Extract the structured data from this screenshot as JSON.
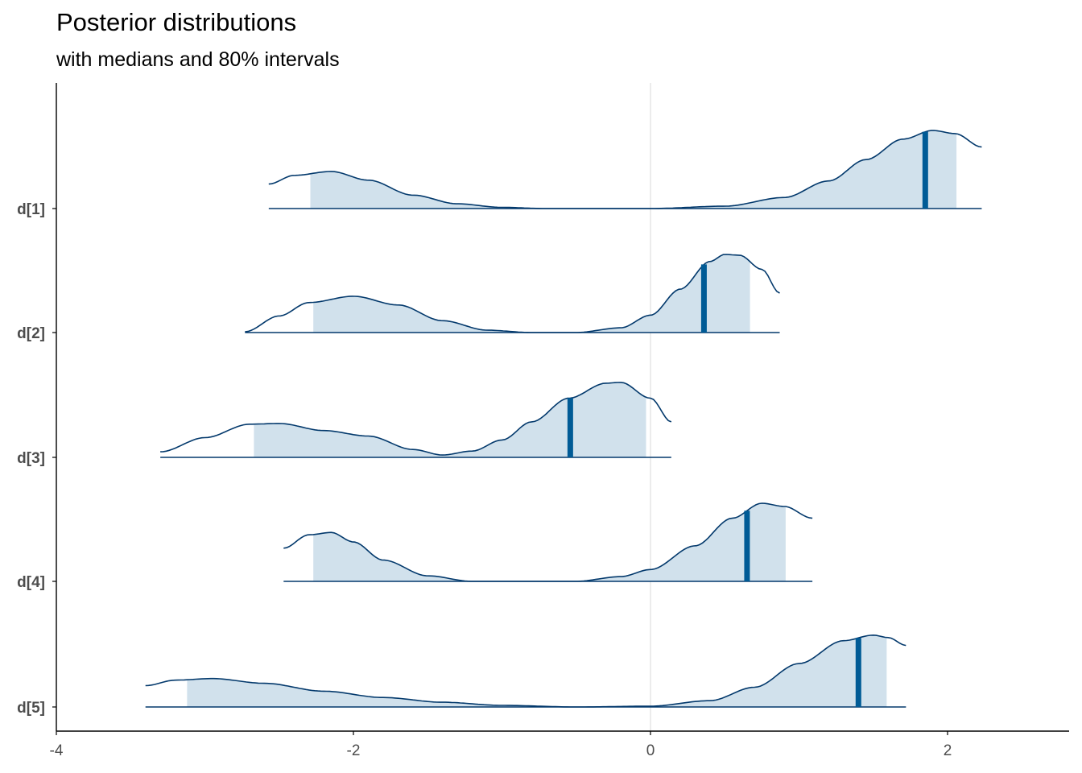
{
  "chart_data": {
    "type": "area",
    "title": "Posterior distributions",
    "subtitle": "with medians and 80% intervals",
    "xlim": [
      -4,
      2.8
    ],
    "x_ticks": [
      -4,
      -2,
      0,
      2
    ],
    "x_tick_labels": [
      "-4",
      "-2",
      "0",
      "2"
    ],
    "vline_at": 0,
    "grid": false,
    "colors": {
      "fill": "#d1e1ec",
      "line": "#03396c",
      "median": "#005b96",
      "vline": "#e0e0e0",
      "axis": "#000000"
    },
    "series": [
      {
        "name": "d[1]",
        "range": [
          -2.57,
          2.23
        ],
        "interval": [
          -2.29,
          2.06
        ],
        "median": 1.85,
        "density": [
          [
            -2.57,
            0.31
          ],
          [
            -2.4,
            0.42
          ],
          [
            -2.15,
            0.47
          ],
          [
            -1.9,
            0.36
          ],
          [
            -1.6,
            0.17
          ],
          [
            -1.3,
            0.06
          ],
          [
            -1.0,
            0.015
          ],
          [
            -0.7,
            0.0
          ],
          [
            0,
            0.0
          ],
          [
            0.5,
            0.03
          ],
          [
            0.9,
            0.14
          ],
          [
            1.2,
            0.35
          ],
          [
            1.45,
            0.62
          ],
          [
            1.7,
            0.88
          ],
          [
            1.9,
            0.99
          ],
          [
            2.05,
            0.95
          ],
          [
            2.23,
            0.78
          ]
        ]
      },
      {
        "name": "d[2]",
        "range": [
          -2.73,
          0.87
        ],
        "interval": [
          -2.27,
          0.67
        ],
        "median": 0.36,
        "density": [
          [
            -2.73,
            0.01
          ],
          [
            -2.5,
            0.21
          ],
          [
            -2.3,
            0.38
          ],
          [
            -2.0,
            0.46
          ],
          [
            -1.7,
            0.35
          ],
          [
            -1.4,
            0.15
          ],
          [
            -1.1,
            0.03
          ],
          [
            -0.8,
            0.0
          ],
          [
            -0.5,
            0.0
          ],
          [
            -0.2,
            0.06
          ],
          [
            0.0,
            0.22
          ],
          [
            0.2,
            0.55
          ],
          [
            0.4,
            0.9
          ],
          [
            0.5,
            0.99
          ],
          [
            0.6,
            0.98
          ],
          [
            0.75,
            0.8
          ],
          [
            0.87,
            0.5
          ]
        ]
      },
      {
        "name": "d[3]",
        "range": [
          -3.3,
          0.14
        ],
        "interval": [
          -2.67,
          -0.03
        ],
        "median": -0.54,
        "density": [
          [
            -3.3,
            0.07
          ],
          [
            -3.0,
            0.25
          ],
          [
            -2.7,
            0.42
          ],
          [
            -2.5,
            0.43
          ],
          [
            -2.2,
            0.34
          ],
          [
            -1.9,
            0.27
          ],
          [
            -1.6,
            0.1
          ],
          [
            -1.4,
            0.03
          ],
          [
            -1.2,
            0.08
          ],
          [
            -1.0,
            0.22
          ],
          [
            -0.8,
            0.45
          ],
          [
            -0.55,
            0.75
          ],
          [
            -0.3,
            0.94
          ],
          [
            -0.2,
            0.95
          ],
          [
            0.0,
            0.75
          ],
          [
            0.14,
            0.45
          ]
        ]
      },
      {
        "name": "d[4]",
        "range": [
          -2.47,
          1.09
        ],
        "interval": [
          -2.27,
          0.91
        ],
        "median": 0.65,
        "density": [
          [
            -2.47,
            0.42
          ],
          [
            -2.3,
            0.59
          ],
          [
            -2.15,
            0.62
          ],
          [
            -2.0,
            0.5
          ],
          [
            -1.8,
            0.27
          ],
          [
            -1.5,
            0.07
          ],
          [
            -1.2,
            0.0
          ],
          [
            -0.5,
            0.0
          ],
          [
            -0.2,
            0.06
          ],
          [
            0.0,
            0.15
          ],
          [
            0.3,
            0.45
          ],
          [
            0.55,
            0.8
          ],
          [
            0.75,
            0.99
          ],
          [
            0.9,
            0.95
          ],
          [
            1.09,
            0.8
          ]
        ]
      },
      {
        "name": "d[5]",
        "range": [
          -3.4,
          1.72
        ],
        "interval": [
          -3.12,
          1.59
        ],
        "median": 1.4,
        "density": [
          [
            -3.4,
            0.27
          ],
          [
            -3.2,
            0.34
          ],
          [
            -2.95,
            0.36
          ],
          [
            -2.6,
            0.3
          ],
          [
            -2.2,
            0.2
          ],
          [
            -1.8,
            0.12
          ],
          [
            -1.4,
            0.06
          ],
          [
            -1.0,
            0.02
          ],
          [
            -0.5,
            0.0
          ],
          [
            0.0,
            0.01
          ],
          [
            0.4,
            0.08
          ],
          [
            0.7,
            0.25
          ],
          [
            1.0,
            0.55
          ],
          [
            1.3,
            0.84
          ],
          [
            1.5,
            0.91
          ],
          [
            1.6,
            0.88
          ],
          [
            1.72,
            0.78
          ]
        ]
      }
    ]
  }
}
